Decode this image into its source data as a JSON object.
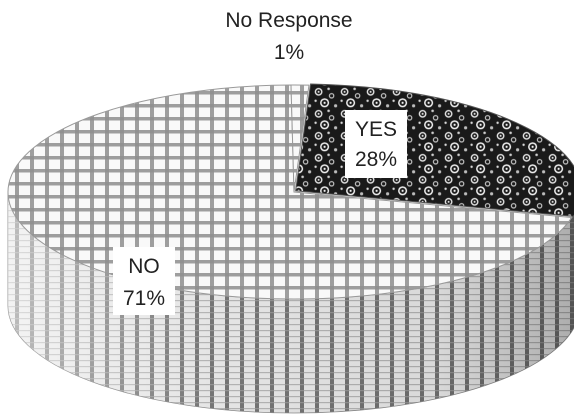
{
  "chart_data": {
    "type": "pie",
    "style": "3d",
    "slices": [
      {
        "label": "YES",
        "value": 28,
        "value_label": "28%",
        "fill": "#1a1a1a",
        "pattern": "dots"
      },
      {
        "label": "NO",
        "value": 71,
        "value_label": "71%",
        "fill": "#f7f7f7",
        "pattern": "grid"
      },
      {
        "label": "No Response",
        "value": 1,
        "value_label": "1%",
        "fill": "#f7f7f7",
        "pattern": "grid"
      }
    ],
    "labels": {
      "yes": {
        "name": "YES",
        "pct": "28%"
      },
      "no": {
        "name": "NO",
        "pct": "71%"
      },
      "no_response": {
        "name": "No Response",
        "pct": "1%"
      }
    },
    "colors": {
      "pattern_dark": "#1a1a1a",
      "pattern_light": "#f7f7f7",
      "grid_line": "#8a8a8a"
    }
  }
}
